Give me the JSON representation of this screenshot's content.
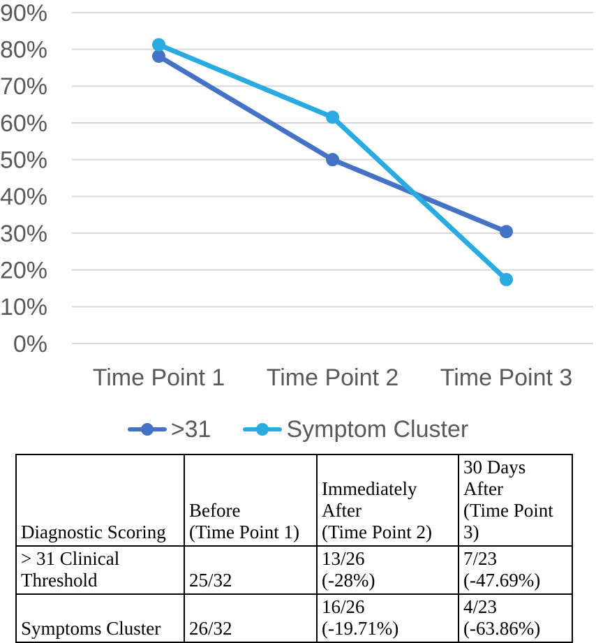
{
  "chart_data": {
    "type": "line",
    "title": "",
    "categories": [
      "Time Point 1",
      "Time Point 2",
      "Time Point 3"
    ],
    "series": [
      {
        "name": ">31",
        "color": "#4472C4",
        "values": [
          78.13,
          50.0,
          30.43
        ]
      },
      {
        "name": "Symptom Cluster",
        "color": "#29ABE2",
        "values": [
          81.25,
          61.54,
          17.39
        ]
      }
    ],
    "ylim": [
      0,
      90
    ],
    "ytick_step": 10,
    "ytick_labels": [
      "0%",
      "10%",
      "20%",
      "30%",
      "40%",
      "50%",
      "60%",
      "70%",
      "80%",
      "90%"
    ],
    "grid": true,
    "legend_position": "bottom",
    "axis_text_color": "#595959",
    "gridline_color": "#D9D9D9"
  },
  "table": {
    "columns": [
      "Diagnostic Scoring",
      "Before\n(Time Point 1)",
      "Immediately After\n(Time Point 2)",
      "30 Days After\n(Time Point 3)"
    ],
    "rows": [
      [
        "> 31 Clinical\nThreshold",
        "25/32",
        "13/26\n(-28%)",
        "7/23\n(-47.69%)"
      ],
      [
        "Symptoms Cluster",
        "26/32",
        "16/26\n(-19.71%)",
        "4/23\n(-63.86%)"
      ]
    ]
  }
}
